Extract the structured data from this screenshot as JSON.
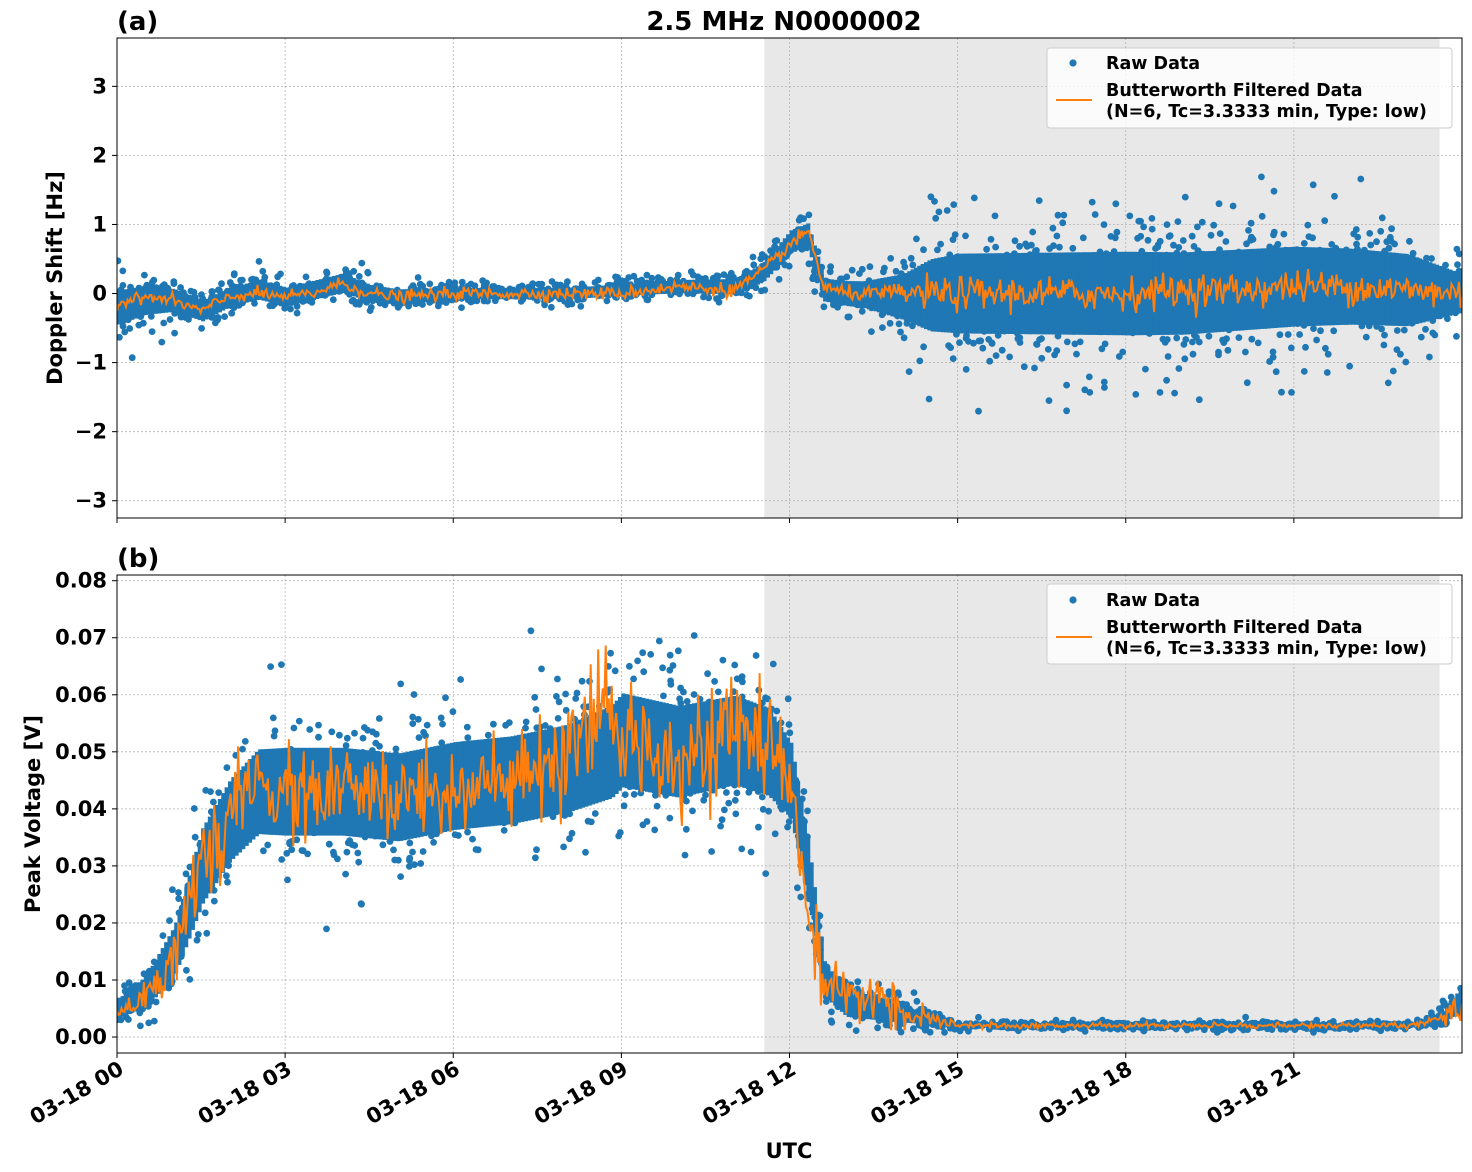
{
  "figure": {
    "title": "2.5 MHz N0000002",
    "xlabel": "UTC"
  },
  "colors": {
    "raw": "#1f77b4",
    "filtered": "#ff7f0e",
    "shade": "#e8e8e8",
    "grid": "#b0b0b0"
  },
  "chart_data": [
    {
      "type": "scatter",
      "panel_label": "(a)",
      "title": "2.5 MHz N0000002",
      "ylabel": "Doppler Shift [Hz]",
      "xlabel": "",
      "x_unit": "hours UTC on 03-18",
      "xlim": [
        0,
        24
      ],
      "ylim": [
        -3.25,
        3.7
      ],
      "x_ticks": [
        0,
        3,
        6,
        9,
        12,
        15,
        18,
        21
      ],
      "x_tick_labels": [
        "03-18 00",
        "03-18 03",
        "03-18 06",
        "03-18 09",
        "03-18 12",
        "03-18 15",
        "03-18 18",
        "03-18 21"
      ],
      "y_ticks": [
        -3,
        -2,
        -1,
        0,
        1,
        2,
        3
      ],
      "y_tick_labels": [
        "−3",
        "−2",
        "−1",
        "0",
        "1",
        "2",
        "3"
      ],
      "grid": true,
      "legend_position": "top-right",
      "shaded_interval": [
        11.55,
        23.6
      ],
      "series": [
        {
          "name": "Raw Data",
          "kind": "points",
          "center": [
            [
              0,
              -0.2
            ],
            [
              0.5,
              -0.1
            ],
            [
              1.0,
              -0.1
            ],
            [
              1.5,
              -0.25
            ],
            [
              2.0,
              -0.05
            ],
            [
              2.5,
              0.05
            ],
            [
              3.0,
              -0.05
            ],
            [
              3.5,
              0.05
            ],
            [
              4.0,
              0.15
            ],
            [
              4.5,
              0.0
            ],
            [
              5.0,
              -0.05
            ],
            [
              6.0,
              0.0
            ],
            [
              7.0,
              0.0
            ],
            [
              8.0,
              0.0
            ],
            [
              9.0,
              0.05
            ],
            [
              10.0,
              0.1
            ],
            [
              11.0,
              0.1
            ],
            [
              11.5,
              0.3
            ],
            [
              12.0,
              0.75
            ],
            [
              12.3,
              0.85
            ],
            [
              12.6,
              0.05
            ],
            [
              13.0,
              0.0
            ],
            [
              14.0,
              -0.05
            ],
            [
              15.0,
              0.0
            ],
            [
              16.0,
              0.0
            ],
            [
              17.0,
              0.0
            ],
            [
              18.0,
              0.0
            ],
            [
              19.0,
              0.0
            ],
            [
              20.0,
              0.05
            ],
            [
              21.0,
              0.1
            ],
            [
              22.0,
              0.1
            ],
            [
              23.0,
              0.05
            ],
            [
              24.0,
              0.0
            ]
          ],
          "spread": [
            [
              0,
              0.45
            ],
            [
              1.0,
              0.3
            ],
            [
              2.0,
              0.25
            ],
            [
              4.0,
              0.25
            ],
            [
              6.0,
              0.15
            ],
            [
              9.0,
              0.15
            ],
            [
              11.0,
              0.2
            ],
            [
              12.0,
              0.3
            ],
            [
              12.6,
              0.3
            ],
            [
              13.3,
              0.35
            ],
            [
              14.0,
              0.6
            ],
            [
              14.5,
              0.95
            ],
            [
              15.0,
              1.05
            ],
            [
              18.0,
              1.1
            ],
            [
              21.0,
              1.05
            ],
            [
              23.0,
              0.95
            ],
            [
              24.0,
              0.5
            ]
          ]
        },
        {
          "name": "Butterworth Filtered Data\n(N=6, Tc=3.3333 min, Type: low)",
          "kind": "line",
          "points": [
            [
              0,
              -0.15
            ],
            [
              0.5,
              -0.05
            ],
            [
              1.0,
              -0.1
            ],
            [
              1.5,
              -0.25
            ],
            [
              2.0,
              -0.05
            ],
            [
              2.5,
              0.0
            ],
            [
              3.0,
              -0.05
            ],
            [
              3.5,
              0.0
            ],
            [
              4.0,
              0.15
            ],
            [
              4.5,
              0.0
            ],
            [
              5.0,
              -0.05
            ],
            [
              6.0,
              0.0
            ],
            [
              7.0,
              0.0
            ],
            [
              8.0,
              0.0
            ],
            [
              9.0,
              0.0
            ],
            [
              10.0,
              0.1
            ],
            [
              11.0,
              0.05
            ],
            [
              11.5,
              0.3
            ],
            [
              12.0,
              0.7
            ],
            [
              12.35,
              0.9
            ],
            [
              12.6,
              0.1
            ],
            [
              13.0,
              0.0
            ],
            [
              14.0,
              0.0
            ],
            [
              15.0,
              0.0
            ],
            [
              16.0,
              0.0
            ],
            [
              17.0,
              0.0
            ],
            [
              18.0,
              0.0
            ],
            [
              19.0,
              0.05
            ],
            [
              20.0,
              0.05
            ],
            [
              21.0,
              0.1
            ],
            [
              22.0,
              0.1
            ],
            [
              23.0,
              0.05
            ],
            [
              24.0,
              0.0
            ]
          ],
          "noise": [
            [
              0,
              0.05
            ],
            [
              11.5,
              0.06
            ],
            [
              13.5,
              0.06
            ],
            [
              14.5,
              0.15
            ],
            [
              24.0,
              0.15
            ]
          ]
        }
      ]
    },
    {
      "type": "scatter",
      "panel_label": "(b)",
      "ylabel": "Peak Voltage [V]",
      "xlabel": "UTC",
      "x_unit": "hours UTC on 03-18",
      "xlim": [
        0,
        24
      ],
      "ylim": [
        -0.0028,
        0.081
      ],
      "x_ticks": [
        0,
        3,
        6,
        9,
        12,
        15,
        18,
        21
      ],
      "x_tick_labels": [
        "03-18 00",
        "03-18 03",
        "03-18 06",
        "03-18 09",
        "03-18 12",
        "03-18 15",
        "03-18 18",
        "03-18 21"
      ],
      "y_ticks": [
        0.0,
        0.01,
        0.02,
        0.03,
        0.04,
        0.05,
        0.06,
        0.07,
        0.08
      ],
      "y_tick_labels": [
        "0.00",
        "0.01",
        "0.02",
        "0.03",
        "0.04",
        "0.05",
        "0.06",
        "0.07",
        "0.08"
      ],
      "grid": true,
      "legend_position": "top-right",
      "shaded_interval": [
        11.55,
        23.6
      ],
      "series": [
        {
          "name": "Raw Data",
          "kind": "points",
          "center": [
            [
              0,
              0.005
            ],
            [
              0.5,
              0.008
            ],
            [
              1.0,
              0.015
            ],
            [
              1.5,
              0.03
            ],
            [
              2.0,
              0.038
            ],
            [
              2.5,
              0.043
            ],
            [
              3.0,
              0.043
            ],
            [
              4.0,
              0.043
            ],
            [
              5.0,
              0.042
            ],
            [
              6.0,
              0.044
            ],
            [
              7.0,
              0.045
            ],
            [
              8.0,
              0.047
            ],
            [
              8.8,
              0.05
            ],
            [
              9.0,
              0.052
            ],
            [
              10.0,
              0.05
            ],
            [
              11.0,
              0.052
            ],
            [
              11.6,
              0.05
            ],
            [
              12.0,
              0.045
            ],
            [
              12.3,
              0.03
            ],
            [
              12.6,
              0.01
            ],
            [
              13.0,
              0.006
            ],
            [
              13.5,
              0.005
            ],
            [
              14.0,
              0.004
            ],
            [
              14.5,
              0.003
            ],
            [
              15.0,
              0.002
            ],
            [
              18.0,
              0.002
            ],
            [
              21.0,
              0.002
            ],
            [
              23.0,
              0.002
            ],
            [
              23.6,
              0.003
            ],
            [
              24.0,
              0.007
            ]
          ],
          "spread": [
            [
              0,
              0.003
            ],
            [
              0.5,
              0.005
            ],
            [
              1.0,
              0.008
            ],
            [
              1.5,
              0.012
            ],
            [
              2.0,
              0.013
            ],
            [
              3.0,
              0.014
            ],
            [
              8.0,
              0.014
            ],
            [
              9.0,
              0.015
            ],
            [
              11.6,
              0.014
            ],
            [
              12.0,
              0.012
            ],
            [
              12.4,
              0.008
            ],
            [
              12.7,
              0.005
            ],
            [
              13.3,
              0.004
            ],
            [
              14.3,
              0.002
            ],
            [
              15.0,
              0.0007
            ],
            [
              23.4,
              0.0007
            ],
            [
              24.0,
              0.004
            ]
          ]
        },
        {
          "name": "Butterworth Filtered Data\n(N=6, Tc=3.3333 min, Type: low)",
          "kind": "line",
          "points": [
            [
              0,
              0.004
            ],
            [
              0.5,
              0.008
            ],
            [
              1.0,
              0.013
            ],
            [
              1.5,
              0.03
            ],
            [
              2.0,
              0.038
            ],
            [
              2.5,
              0.045
            ],
            [
              3.0,
              0.042
            ],
            [
              4.0,
              0.043
            ],
            [
              5.0,
              0.042
            ],
            [
              6.0,
              0.044
            ],
            [
              7.0,
              0.044
            ],
            [
              8.0,
              0.048
            ],
            [
              8.8,
              0.058
            ],
            [
              9.0,
              0.052
            ],
            [
              10.0,
              0.05
            ],
            [
              11.0,
              0.053
            ],
            [
              11.6,
              0.052
            ],
            [
              12.0,
              0.045
            ],
            [
              12.3,
              0.025
            ],
            [
              12.6,
              0.008
            ],
            [
              13.0,
              0.006
            ],
            [
              13.5,
              0.008
            ],
            [
              14.0,
              0.004
            ],
            [
              14.5,
              0.003
            ],
            [
              15.0,
              0.002
            ],
            [
              18.0,
              0.002
            ],
            [
              21.0,
              0.002
            ],
            [
              23.0,
              0.002
            ],
            [
              23.6,
              0.003
            ],
            [
              24.0,
              0.005
            ]
          ],
          "noise": [
            [
              0,
              0.001
            ],
            [
              1.5,
              0.004
            ],
            [
              3.0,
              0.005
            ],
            [
              11.6,
              0.006
            ],
            [
              12.3,
              0.004
            ],
            [
              13.0,
              0.003
            ],
            [
              14.0,
              0.002
            ],
            [
              15.0,
              0.0003
            ],
            [
              23.4,
              0.0003
            ],
            [
              24.0,
              0.0015
            ]
          ]
        }
      ]
    }
  ],
  "legend": {
    "raw_label": "Raw Data",
    "filtered_label_line1": "Butterworth Filtered Data",
    "filtered_label_line2": "(N=6, Tc=3.3333 min, Type: low)"
  }
}
